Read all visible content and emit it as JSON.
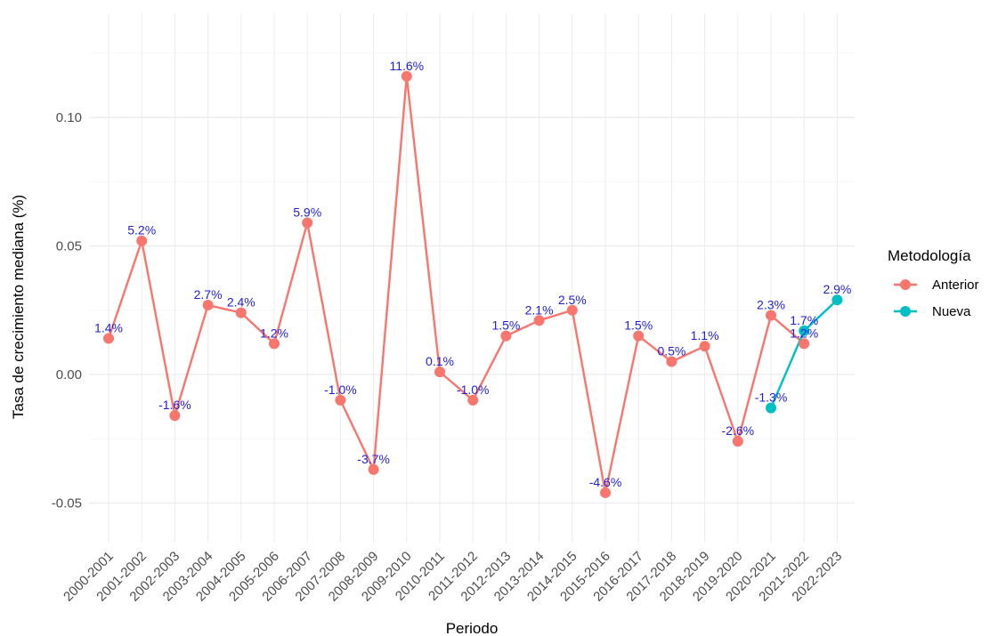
{
  "chart_data": {
    "type": "line",
    "xlabel": "Periodo",
    "ylabel": "Tasa de crecimiento mediana (%)",
    "ylim": [
      -0.07,
      0.135
    ],
    "yticks": [
      -0.05,
      0.0,
      0.05,
      0.1
    ],
    "ytick_labels": [
      "-0.05",
      "0.00",
      "0.05",
      "0.10"
    ],
    "grid": true,
    "categories": [
      "2000-2001",
      "2001-2002",
      "2002-2003",
      "2003-2004",
      "2004-2005",
      "2005-2006",
      "2006-2007",
      "2007-2008",
      "2008-2009",
      "2009-2010",
      "2010-2011",
      "2011-2012",
      "2012-2013",
      "2013-2014",
      "2014-2015",
      "2015-2016",
      "2016-2017",
      "2017-2018",
      "2018-2019",
      "2019-2020",
      "2020-2021",
      "2021-2022",
      "2022-2023"
    ],
    "legend": {
      "title": "Metodología",
      "position": "right"
    },
    "series": [
      {
        "name": "Anterior",
        "color": "#F8766D",
        "x": [
          "2000-2001",
          "2001-2002",
          "2002-2003",
          "2003-2004",
          "2004-2005",
          "2005-2006",
          "2006-2007",
          "2007-2008",
          "2008-2009",
          "2009-2010",
          "2010-2011",
          "2011-2012",
          "2012-2013",
          "2013-2014",
          "2014-2015",
          "2015-2016",
          "2016-2017",
          "2017-2018",
          "2018-2019",
          "2019-2020",
          "2020-2021",
          "2021-2022"
        ],
        "values": [
          0.014,
          0.052,
          -0.016,
          0.027,
          0.024,
          0.012,
          0.059,
          -0.01,
          -0.037,
          0.116,
          0.001,
          -0.01,
          0.015,
          0.021,
          0.025,
          -0.046,
          0.015,
          0.005,
          0.011,
          -0.026,
          0.023,
          0.012
        ],
        "labels": [
          "1.4%",
          "5.2%",
          "-1.6%",
          "2.7%",
          "2.4%",
          "1.2%",
          "5.9%",
          "-1.0%",
          "-3.7%",
          "11.6%",
          "0.1%",
          "-1.0%",
          "1.5%",
          "2.1%",
          "2.5%",
          "-4.6%",
          "1.5%",
          "0.5%",
          "1.1%",
          "-2.6%",
          "2.3%",
          "1.2%"
        ]
      },
      {
        "name": "Nueva",
        "color": "#00BFC4",
        "x": [
          "2020-2021",
          "2021-2022",
          "2022-2023"
        ],
        "values": [
          -0.013,
          0.017,
          0.029
        ],
        "labels": [
          "-1.3%",
          "1.7%",
          "2.9%"
        ]
      }
    ]
  }
}
